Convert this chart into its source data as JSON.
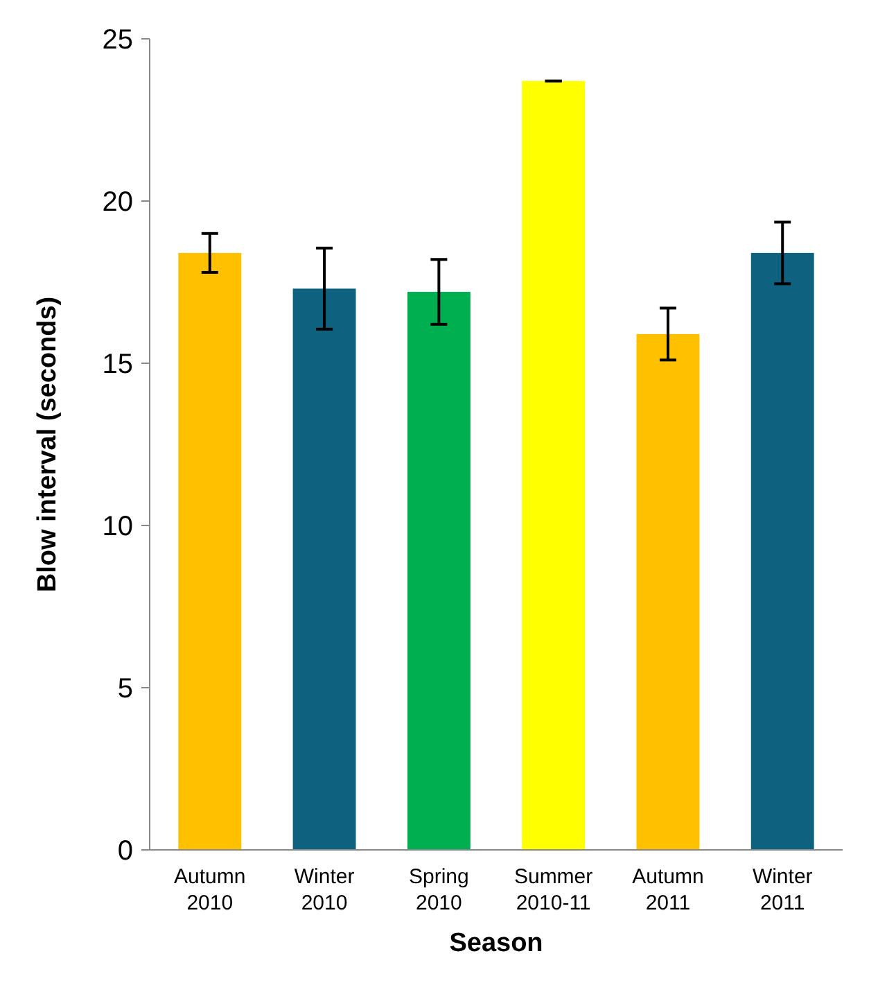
{
  "chart_data": {
    "type": "bar",
    "xlabel": "Season",
    "ylabel": "Blow interval (seconds)",
    "categories": [
      "Autumn 2010",
      "Winter 2010",
      "Spring 2010",
      "Summer 2010-11",
      "Autumn 2011",
      "Winter 2011"
    ],
    "values": [
      18.4,
      17.3,
      17.2,
      23.7,
      15.9,
      18.4
    ],
    "errors": [
      0.6,
      1.25,
      1.0,
      0,
      0.8,
      0.95
    ],
    "colors": [
      "#ffc000",
      "#0e6280",
      "#00b050",
      "#ffff00",
      "#ffc000",
      "#0e6280"
    ],
    "ylim": [
      0,
      25
    ],
    "yticks": [
      0,
      5,
      10,
      15,
      20,
      25
    ]
  }
}
